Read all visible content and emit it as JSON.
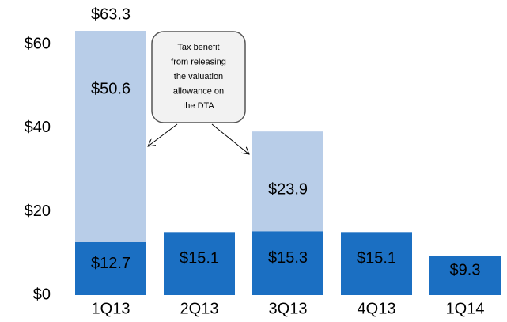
{
  "chart_data": {
    "type": "stacked_bar",
    "categories": [
      "1Q13",
      "2Q13",
      "3Q13",
      "4Q13",
      "1Q14"
    ],
    "series": [
      {
        "color": "#1b6fc2",
        "values": [
          12.7,
          15.1,
          15.3,
          15.1,
          9.3
        ],
        "value_labels": [
          "$12.7",
          "$15.1",
          "$15.3",
          "$15.1",
          "$9.3"
        ]
      },
      {
        "color": "#b8cde8",
        "values": [
          50.6,
          null,
          23.9,
          null,
          null
        ],
        "value_labels": [
          "$50.6",
          null,
          "$23.9",
          null,
          null
        ]
      }
    ],
    "totals": [
      63.3,
      null,
      null,
      null,
      null
    ],
    "total_labels": [
      "$63.3",
      null,
      null,
      null,
      null
    ],
    "ylim": [
      0,
      63.3
    ],
    "yticks": [
      {
        "value": 0,
        "label": "$0"
      },
      {
        "value": 20,
        "label": "$20"
      },
      {
        "value": 40,
        "label": "$40"
      },
      {
        "value": 60,
        "label": "$60"
      }
    ],
    "annotation": {
      "lines": [
        "Tax benefit",
        "from releasing",
        "the valuation",
        "allowance on",
        "the DTA"
      ]
    }
  }
}
